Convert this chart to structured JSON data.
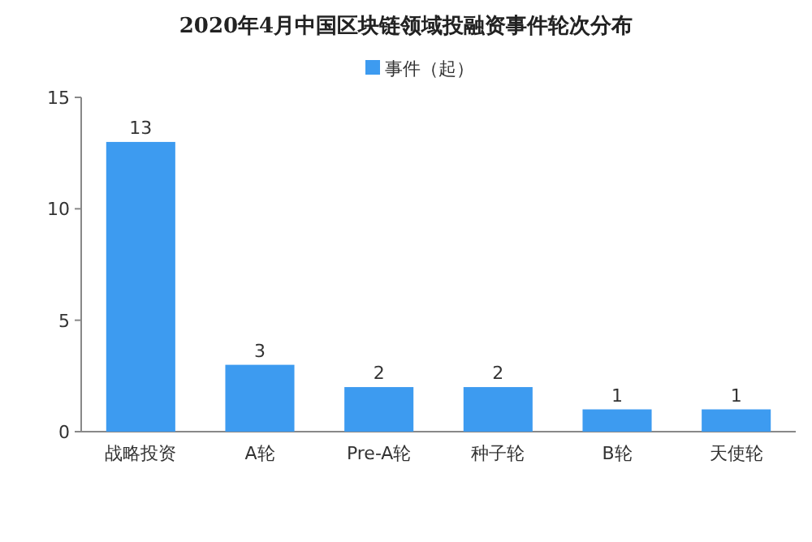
{
  "chart_data": {
    "type": "bar",
    "title": "2020年4月中国区块链领域投融资事件轮次分布",
    "categories": [
      "战略投资",
      "A轮",
      "Pre-A轮",
      "种子轮",
      "B轮",
      "天使轮"
    ],
    "series": [
      {
        "name": "事件（起）",
        "color": "#3d9bf0",
        "values": [
          13,
          3,
          2,
          2,
          1,
          1
        ]
      }
    ],
    "ylim": [
      0,
      15
    ],
    "yticks": [
      0,
      5,
      10,
      15
    ],
    "data_labels": true,
    "legend": "top"
  }
}
